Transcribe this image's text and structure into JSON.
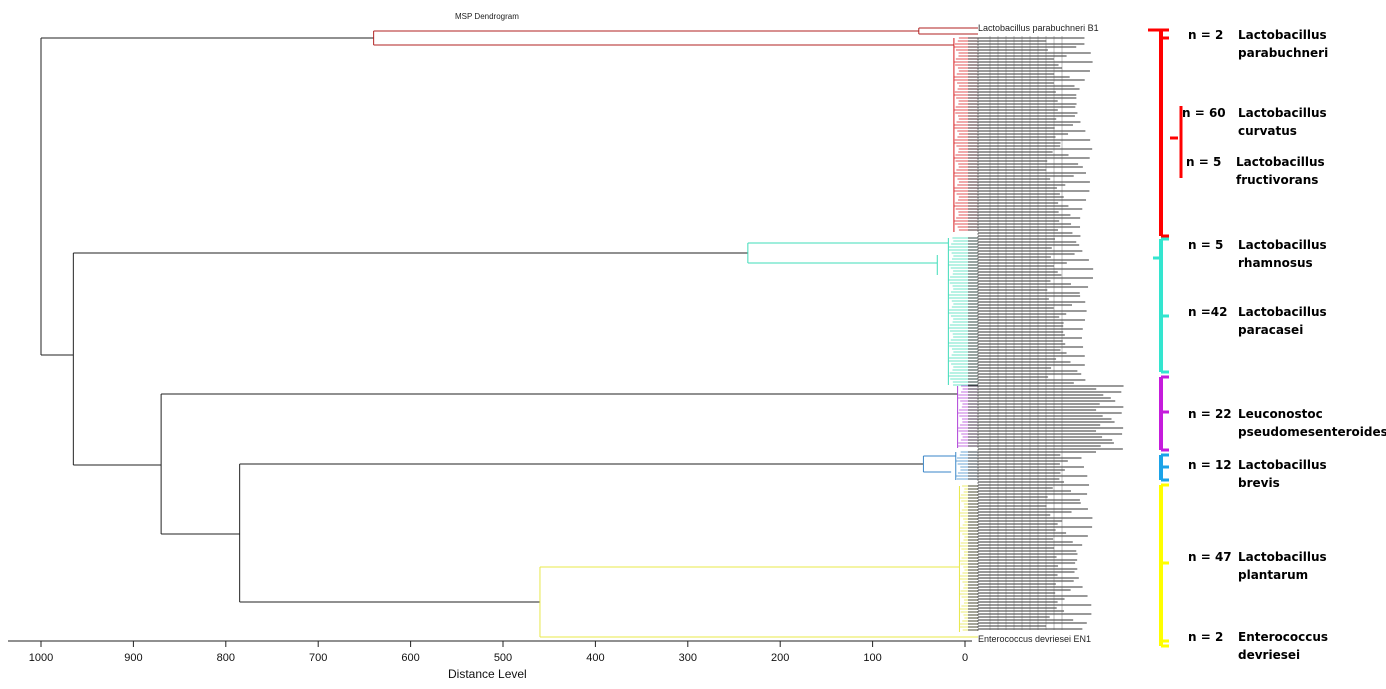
{
  "title": "MSP Dendrogram",
  "x_axis": {
    "label": "Distance Level",
    "ticks": [
      "1000",
      "900",
      "800",
      "700",
      "600",
      "500",
      "400",
      "300",
      "200",
      "100",
      "0"
    ],
    "range": [
      0,
      1000
    ]
  },
  "leaf_labels": {
    "first": "Lactobacillus parabuchneri B1",
    "last": "Enterococcus devriesei EN1"
  },
  "colors": {
    "parabuchneri": "#b22222",
    "red_group": "#d7191c",
    "rhamnosus_paracasei": "#3fdcb8",
    "leuconostoc": "#b040d8",
    "brevis": "#3a86c8",
    "plantarum": "#e8e84a",
    "black": "#222222"
  },
  "groups": [
    {
      "count": "n = 2",
      "name_line1": "Lactobacillus",
      "name_line2": "parabuchneri",
      "color": "#ff0000"
    },
    {
      "count": "n = 60",
      "name_line1": "Lactobacillus",
      "name_line2": "curvatus",
      "color": "#ff0000"
    },
    {
      "count": "n = 5",
      "name_line1": "Lactobacillus",
      "name_line2": "fructivorans",
      "color": "#ff0000"
    },
    {
      "count": "n = 5",
      "name_line1": "Lactobacillus",
      "name_line2": "rhamnosus",
      "color": "#33e5cf"
    },
    {
      "count": "n =42",
      "name_line1": "Lactobacillus",
      "name_line2": "paracasei",
      "color": "#33e5cf"
    },
    {
      "count": "n = 22",
      "name_line1": "Leuconostoc",
      "name_line2": "pseudomesenteroides",
      "color": "#c51bdc"
    },
    {
      "count": "n = 12",
      "name_line1": "Lactobacillus",
      "name_line2": "brevis",
      "color": "#1ba3e8"
    },
    {
      "count": "n = 47",
      "name_line1": "Lactobacillus",
      "name_line2": "plantarum",
      "color": "#ffff00"
    },
    {
      "count": "n = 2",
      "name_line1": "Enterococcus",
      "name_line2": "devriesei",
      "color": "#ffff00"
    }
  ],
  "merge_distances": {
    "root": 1000,
    "lactobacillus_main": 965,
    "leuconostoc_brevis_plantarum": 870,
    "brevis_plantarum": 785,
    "parabuchneri_rest": 640,
    "plantarum_enterococcus": 460,
    "rhamnosus_paracasei": 235,
    "brevis_subcluster": 45
  }
}
